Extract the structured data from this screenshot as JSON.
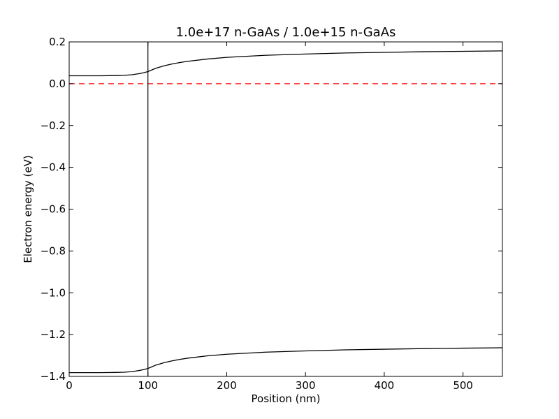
{
  "chart_data": {
    "type": "line",
    "title": "1.0e+17 n-GaAs / 1.0e+15 n-GaAs",
    "xlabel": "Position (nm)",
    "ylabel": "Electron energy (eV)",
    "xlim": [
      0,
      550
    ],
    "ylim": [
      -1.4,
      0.2
    ],
    "xticks": [
      0,
      100,
      200,
      300,
      400,
      500
    ],
    "xtick_labels": [
      "0",
      "100",
      "200",
      "300",
      "400",
      "500"
    ],
    "yticks": [
      0.2,
      0.0,
      -0.2,
      -0.4,
      -0.6,
      -0.8,
      -1.0,
      -1.2,
      -1.4
    ],
    "ytick_labels": [
      "0.2",
      "0.0",
      "−0.2",
      "−0.4",
      "−0.6",
      "−0.8",
      "−1.0",
      "−1.2",
      "−1.4"
    ],
    "grid": false,
    "series": [
      {
        "color": "#000000",
        "style": "solid",
        "x": [
          0,
          20,
          40,
          60,
          70,
          80,
          85,
          90,
          95,
          100,
          105,
          110,
          120,
          130,
          140,
          150,
          175,
          200,
          250,
          300,
          350,
          400,
          450,
          500,
          550
        ],
        "y": [
          0.038,
          0.038,
          0.038,
          0.039,
          0.04,
          0.043,
          0.046,
          0.049,
          0.053,
          0.058,
          0.066,
          0.074,
          0.085,
          0.094,
          0.101,
          0.107,
          0.118,
          0.126,
          0.136,
          0.142,
          0.147,
          0.15,
          0.153,
          0.155,
          0.157
        ]
      },
      {
        "color": "#000000",
        "style": "solid",
        "x": [
          0,
          20,
          40,
          60,
          70,
          80,
          85,
          90,
          95,
          100,
          105,
          110,
          120,
          130,
          140,
          150,
          175,
          200,
          250,
          300,
          350,
          400,
          450,
          500,
          550
        ],
        "y": [
          -1.382,
          -1.382,
          -1.382,
          -1.381,
          -1.38,
          -1.377,
          -1.374,
          -1.371,
          -1.367,
          -1.362,
          -1.354,
          -1.346,
          -1.335,
          -1.326,
          -1.319,
          -1.313,
          -1.302,
          -1.294,
          -1.284,
          -1.278,
          -1.273,
          -1.27,
          -1.267,
          -1.265,
          -1.263
        ]
      },
      {
        "color": "#ff0000",
        "style": "dashed",
        "x": [
          0,
          550
        ],
        "y": [
          0.0,
          0.0
        ]
      }
    ],
    "vlines": [
      {
        "x": 100,
        "color": "#000000"
      }
    ]
  }
}
